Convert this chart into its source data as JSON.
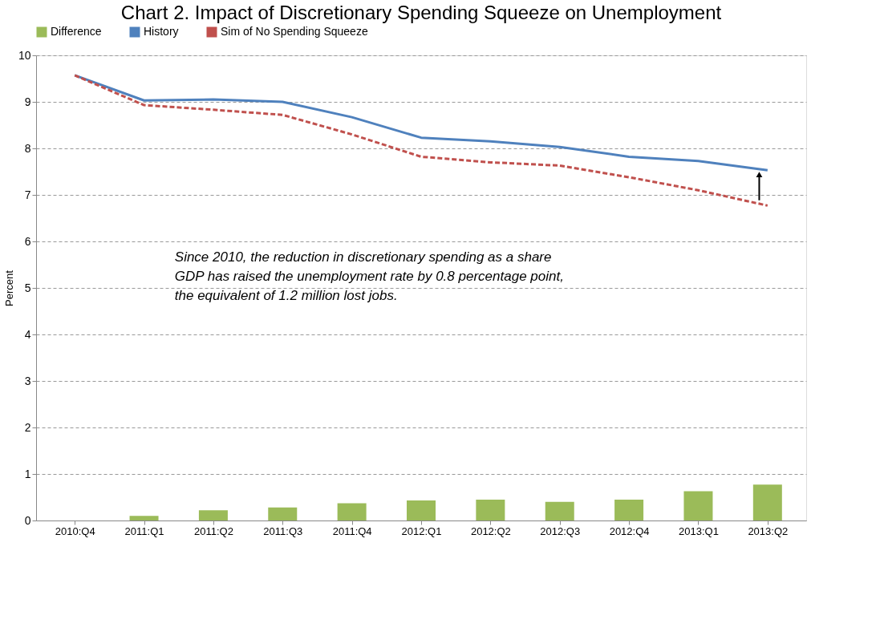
{
  "chart_data": {
    "type": "line",
    "title": "Chart 2.  Impact of Discretionary Spending Squeeze on Unemployment",
    "ylabel": "Percent",
    "categories": [
      "2010:Q4",
      "2011:Q1",
      "2011:Q2",
      "2011:Q3",
      "2011:Q4",
      "2012:Q1",
      "2012:Q2",
      "2012:Q3",
      "2012:Q4",
      "2013:Q1",
      "2013:Q2"
    ],
    "series": [
      {
        "name": "Difference",
        "type": "bar",
        "color": "#9bbb59",
        "values": [
          0,
          0.1,
          0.22,
          0.28,
          0.37,
          0.43,
          0.45,
          0.4,
          0.45,
          0.63,
          0.77
        ]
      },
      {
        "name": "History",
        "color": "#4f81bd",
        "line_style": "solid",
        "values": [
          9.57,
          9.03,
          9.05,
          9.0,
          8.67,
          8.23,
          8.15,
          8.03,
          7.82,
          7.73,
          7.53
        ]
      },
      {
        "name": "Sim of No Spending Squeeze",
        "color": "#c0504d",
        "line_style": "dashed",
        "values": [
          9.57,
          8.93,
          8.83,
          8.72,
          8.3,
          7.82,
          7.7,
          7.63,
          7.38,
          7.1,
          6.77
        ]
      }
    ],
    "ylim": [
      0,
      10
    ],
    "yticks": [
      0,
      1,
      2,
      3,
      4,
      5,
      6,
      7,
      8,
      9,
      10
    ],
    "grid": "y",
    "legend": "top",
    "marker": "none",
    "annotations": [
      "Since 2010, the reduction in discretionary spending as a share\nGDP has raised the unemployment rate by 0.8 percentage point,\nthe equivalent of 1.2 million lost jobs."
    ]
  }
}
